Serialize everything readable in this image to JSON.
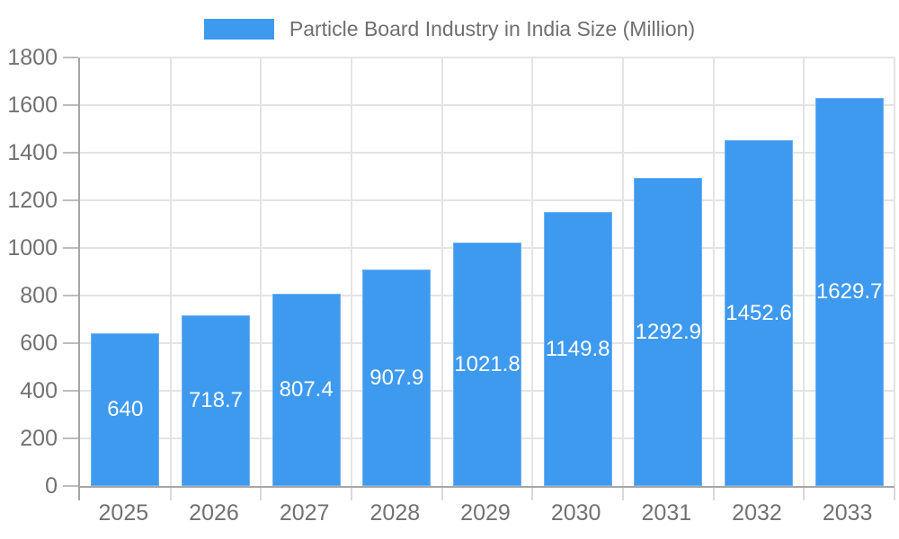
{
  "chart_data": {
    "type": "bar",
    "title": "Particle Board Industry in India Size (Million)",
    "categories": [
      "2025",
      "2026",
      "2027",
      "2028",
      "2029",
      "2030",
      "2031",
      "2032",
      "2033"
    ],
    "values": [
      640,
      718.7,
      807.4,
      907.9,
      1021.8,
      1149.8,
      1292.9,
      1452.6,
      1629.7
    ],
    "value_labels": [
      "640",
      "718.7",
      "807.4",
      "907.9",
      "1021.8",
      "1149.8",
      "1292.9",
      "1452.6",
      "1629.7"
    ],
    "xlabel": "",
    "ylabel": "",
    "ylim": [
      0,
      1800
    ],
    "y_ticks": [
      0,
      200,
      400,
      600,
      800,
      1000,
      1200,
      1400,
      1600,
      1800
    ],
    "grid": true,
    "legend_position": "top",
    "colors": {
      "bar": "#3e9aef",
      "bar_edge": "#6fb0f2",
      "bar_label_text": "#ffffff",
      "axis_text": "#717171",
      "legend_text": "#6f6f6f",
      "gridline": "#e4e4e4",
      "axis_line": "#a6a6a6",
      "background": "#ffffff"
    }
  }
}
